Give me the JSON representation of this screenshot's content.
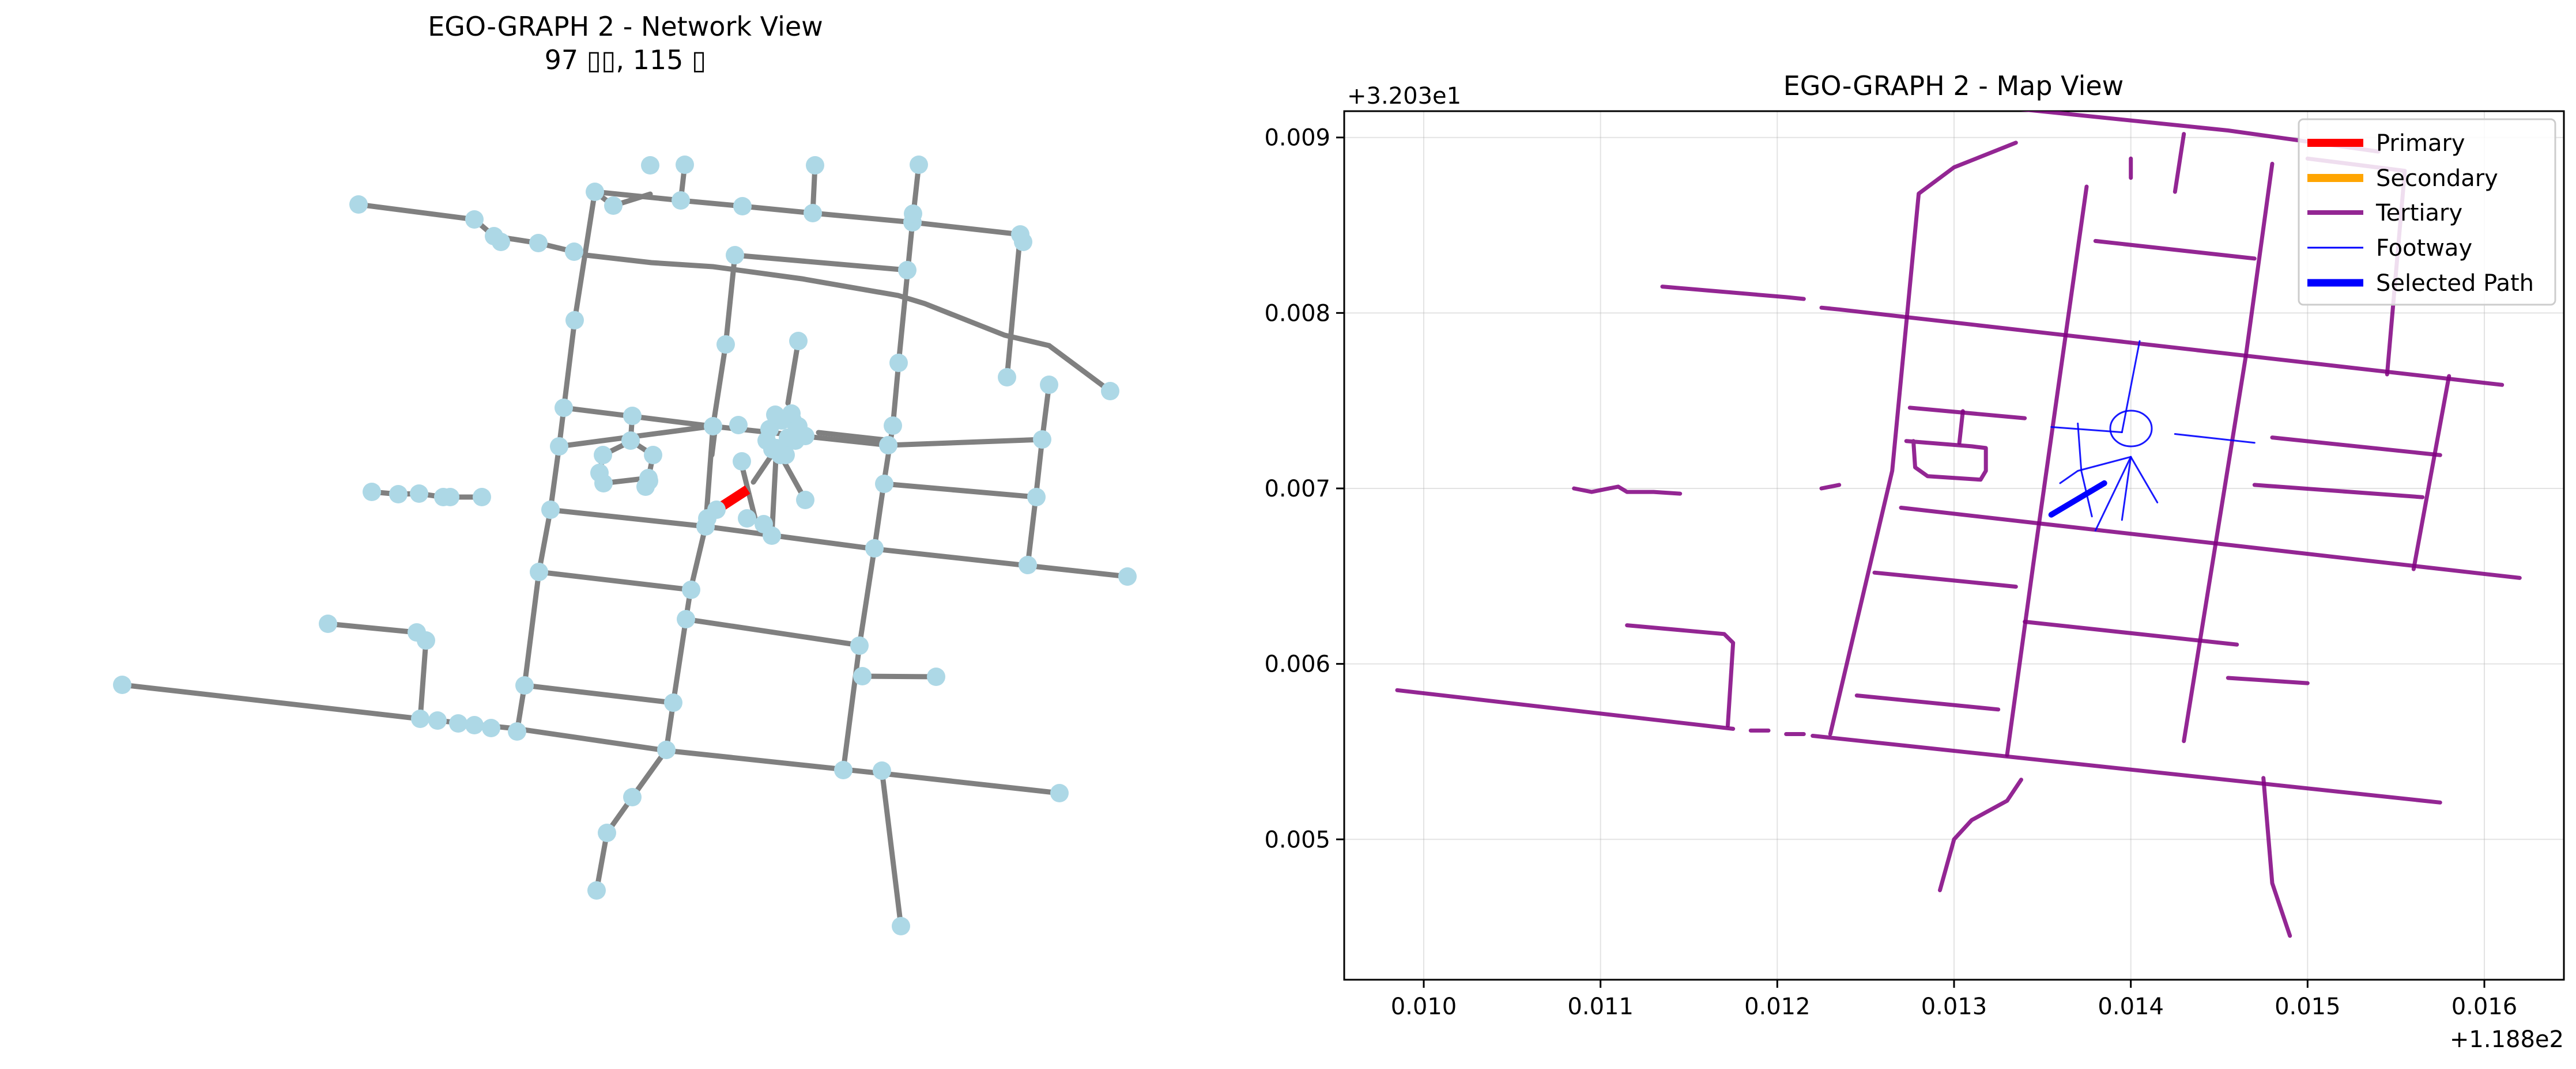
{
  "figure": {
    "network_view": {
      "title_line1": "EGO-GRAPH 2 - Network View",
      "title_line2": "97 ▯▯, 115 ▯"
    },
    "map_view": {
      "title": "EGO-GRAPH 2 - Map View",
      "x_offset_label": "+1.188e2",
      "y_offset_label": "+3.203e1",
      "x_tick_labels": [
        "0.010",
        "0.011",
        "0.012",
        "0.013",
        "0.014",
        "0.015",
        "0.016"
      ],
      "y_tick_labels": [
        "0.005",
        "0.006",
        "0.007",
        "0.008",
        "0.009"
      ],
      "legend": [
        {
          "label": "Primary",
          "color": "#ff0000"
        },
        {
          "label": "Secondary",
          "color": "#ffa500"
        },
        {
          "label": "Tertiary",
          "color": "#800080"
        },
        {
          "label": "Footway",
          "color": "#0000ff"
        },
        {
          "label": "Selected Path",
          "color": "#0000ff"
        }
      ]
    }
  },
  "chart_data": [
    {
      "type": "scatter",
      "title": "EGO-GRAPH 2 - Network View",
      "subtitle": "97 ▯▯, 115 ▯",
      "node_count": 97,
      "edge_count": 115,
      "grid": false,
      "axes_visible": false,
      "colors": {
        "node": "#add8e6",
        "edge": "#808080",
        "selected_edge": "#ff0000"
      }
    },
    {
      "type": "line",
      "title": "EGO-GRAPH 2 - Map View",
      "x_offset": 118.8,
      "y_offset": 32.03,
      "xlim": [
        0.00955,
        0.01645
      ],
      "ylim": [
        0.0042,
        0.00915
      ],
      "x_ticks": [
        0.01,
        0.011,
        0.012,
        0.013,
        0.014,
        0.015,
        0.016
      ],
      "y_ticks": [
        0.005,
        0.006,
        0.007,
        0.008,
        0.009
      ],
      "grid": true,
      "legend_position": "top-right",
      "series": [
        {
          "name": "Primary",
          "color": "#ff0000",
          "segments": []
        },
        {
          "name": "Secondary",
          "color": "#ffa500",
          "segments": []
        },
        {
          "name": "Tertiary",
          "color": "#800080",
          "segments": [
            [
              [
                0.00985,
                0.00585
              ],
              [
                0.01175,
                0.00563
              ]
            ],
            [
              [
                0.01185,
                0.00562
              ],
              [
                0.01195,
                0.00562
              ]
            ],
            [
              [
                0.01205,
                0.0056
              ],
              [
                0.01215,
                0.0056
              ]
            ],
            [
              [
                0.0122,
                0.00559
              ],
              [
                0.01575,
                0.00521
              ]
            ],
            [
              [
                0.01115,
                0.00622
              ],
              [
                0.0117,
                0.00617
              ],
              [
                0.01175,
                0.00612
              ],
              [
                0.01172,
                0.00565
              ]
            ],
            [
              [
                0.01245,
                0.00582
              ],
              [
                0.01325,
                0.00574
              ]
            ],
            [
              [
                0.01255,
                0.00652
              ],
              [
                0.01335,
                0.00644
              ]
            ],
            [
              [
                0.0127,
                0.00689
              ],
              [
                0.0162,
                0.00649
              ]
            ],
            [
              [
                0.01275,
                0.00746
              ],
              [
                0.0134,
                0.0074
              ]
            ],
            [
              [
                0.01273,
                0.00727
              ],
              [
                0.0131,
                0.00724
              ],
              [
                0.01318,
                0.00723
              ],
              [
                0.01318,
                0.0071
              ],
              [
                0.01315,
                0.00705
              ],
              [
                0.01285,
                0.00707
              ],
              [
                0.01278,
                0.00712
              ],
              [
                0.01277,
                0.00727
              ]
            ],
            [
              [
                0.01305,
                0.00744
              ],
              [
                0.01303,
                0.00726
              ]
            ],
            [
              [
                0.01135,
                0.00815
              ],
              [
                0.01205,
                0.00809
              ],
              [
                0.01215,
                0.00808
              ]
            ],
            [
              [
                0.01225,
                0.00803
              ],
              [
                0.01235,
                0.00802
              ],
              [
                0.0161,
                0.00759
              ]
            ],
            [
              [
                0.0131,
                0.00919
              ],
              [
                0.01455,
                0.00904
              ],
              [
                0.0154,
                0.00892
              ]
            ],
            [
              [
                0.0138,
                0.00841
              ],
              [
                0.0147,
                0.00831
              ]
            ],
            [
              [
                0.0123,
                0.0056
              ],
              [
                0.01265,
                0.0071
              ],
              [
                0.0128,
                0.00868
              ],
              [
                0.013,
                0.00883
              ],
              [
                0.01335,
                0.00897
              ]
            ],
            [
              [
                0.01225,
                0.007
              ],
              [
                0.01235,
                0.00702
              ]
            ],
            [
              [
                0.01085,
                0.007
              ],
              [
                0.01095,
                0.00698
              ],
              [
                0.0111,
                0.00701
              ],
              [
                0.01115,
                0.00698
              ],
              [
                0.0113,
                0.00698
              ],
              [
                0.01145,
                0.00697
              ]
            ],
            [
              [
                0.0133,
                0.00548
              ],
              [
                0.01345,
                0.00658
              ],
              [
                0.01375,
                0.00872
              ]
            ],
            [
              [
                0.0143,
                0.00902
              ],
              [
                0.01425,
                0.00869
              ]
            ],
            [
              [
                0.014,
                0.00888
              ],
              [
                0.014,
                0.00877
              ]
            ],
            [
              [
                0.0143,
                0.00556
              ],
              [
                0.01465,
                0.00775
              ],
              [
                0.0148,
                0.00885
              ]
            ],
            [
              [
                0.01292,
                0.00471
              ],
              [
                0.013,
                0.005
              ],
              [
                0.0131,
                0.00511
              ],
              [
                0.0133,
                0.00522
              ],
              [
                0.01338,
                0.00534
              ]
            ],
            [
              [
                0.01475,
                0.00535
              ],
              [
                0.0148,
                0.00475
              ],
              [
                0.0149,
                0.00445
              ]
            ],
            [
              [
                0.0134,
                0.00624
              ],
              [
                0.0146,
                0.00611
              ]
            ],
            [
              [
                0.01455,
                0.00592
              ],
              [
                0.015,
                0.00589
              ]
            ],
            [
              [
                0.0148,
                0.00729
              ],
              [
                0.01575,
                0.00719
              ]
            ],
            [
              [
                0.0147,
                0.00702
              ],
              [
                0.01565,
                0.00695
              ]
            ],
            [
              [
                0.0156,
                0.00654
              ],
              [
                0.0158,
                0.00764
              ]
            ],
            [
              [
                0.015,
                0.00888
              ],
              [
                0.01555,
                0.00881
              ],
              [
                0.01545,
                0.00765
              ]
            ]
          ]
        },
        {
          "name": "Footway",
          "color": "#0000ff",
          "segments": [
            [
              [
                0.01355,
                0.00735
              ],
              [
                0.01395,
                0.00732
              ]
            ],
            [
              [
                0.01395,
                0.00732
              ],
              [
                0.01405,
                0.00784
              ]
            ],
            [
              [
                0.01425,
                0.00731
              ],
              [
                0.0147,
                0.00726
              ]
            ],
            [
              [
                0.014,
                0.00718
              ],
              [
                0.0137,
                0.0071
              ],
              [
                0.0136,
                0.00703
              ]
            ],
            [
              [
                0.014,
                0.00718
              ],
              [
                0.0138,
                0.00676
              ]
            ],
            [
              [
                0.014,
                0.00718
              ],
              [
                0.01395,
                0.00682
              ]
            ],
            [
              [
                0.014,
                0.00718
              ],
              [
                0.01415,
                0.00692
              ]
            ],
            [
              [
                0.0137,
                0.00737
              ],
              [
                0.01372,
                0.0071
              ],
              [
                0.01378,
                0.00684
              ]
            ]
          ]
        },
        {
          "name": "Selected Path",
          "color": "#0000ff",
          "segments": [
            [
              [
                0.01355,
                0.00685
              ],
              [
                0.01385,
                0.00703
              ]
            ]
          ]
        }
      ]
    }
  ]
}
